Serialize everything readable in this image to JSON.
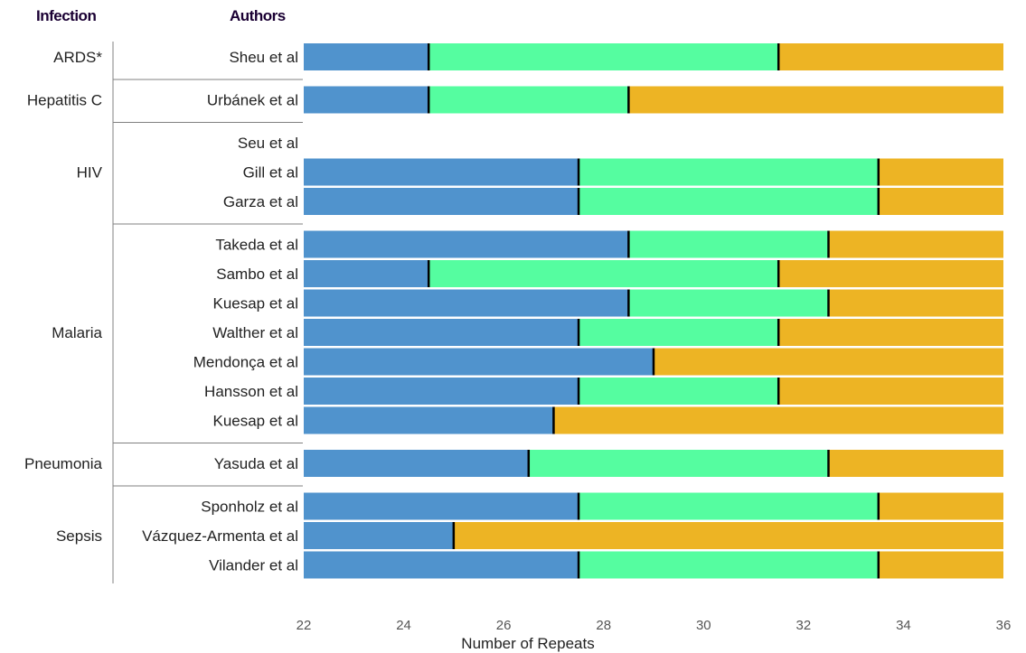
{
  "chart_data": {
    "type": "bar",
    "orientation": "horizontal-stacked-ranges",
    "headers": {
      "group": "Infection",
      "study": "Authors"
    },
    "xlabel": "Number of Repeats",
    "xlim": [
      22,
      36
    ],
    "xticks": [
      "22",
      "24",
      "26",
      "28",
      "30",
      "32",
      "34",
      "36"
    ],
    "colors": {
      "low": "#5093cd",
      "mid": "#55fda0",
      "high": "#edb424",
      "marker": "#000000"
    },
    "groups": [
      {
        "name": "ARDS*",
        "rows": [
          {
            "author": "Sheu et al",
            "cut1": 24.5,
            "cut2": 31.5
          }
        ]
      },
      {
        "name": "Hepatitis C",
        "rows": [
          {
            "author": "Urbánek et al",
            "cut1": 24.5,
            "cut2": 28.5
          }
        ]
      },
      {
        "name": "HIV",
        "rows": [
          {
            "author": "Seu et al",
            "cut1": null,
            "cut2": null
          },
          {
            "author": "Gill et al",
            "cut1": 27.5,
            "cut2": 33.5
          },
          {
            "author": "Garza et al",
            "cut1": 27.5,
            "cut2": 33.5
          }
        ]
      },
      {
        "name": "Malaria",
        "rows": [
          {
            "author": "Takeda et al",
            "cut1": 28.5,
            "cut2": 32.5
          },
          {
            "author": "Sambo et al",
            "cut1": 24.5,
            "cut2": 31.5
          },
          {
            "author": "Kuesap et al",
            "cut1": 28.5,
            "cut2": 32.5
          },
          {
            "author": "Walther et al",
            "cut1": 27.5,
            "cut2": 31.5
          },
          {
            "author": "Mendonça et al",
            "cut1": 29,
            "cut2": null
          },
          {
            "author": "Hansson et al",
            "cut1": 27.5,
            "cut2": 31.5
          },
          {
            "author": "Kuesap et al",
            "cut1": 27,
            "cut2": null
          }
        ]
      },
      {
        "name": "Pneumonia",
        "rows": [
          {
            "author": "Yasuda et al",
            "cut1": 26.5,
            "cut2": 32.5
          }
        ]
      },
      {
        "name": "Sepsis",
        "rows": [
          {
            "author": "Sponholz et al",
            "cut1": 27.5,
            "cut2": 33.5
          },
          {
            "author": "Vázquez-Armenta et al",
            "cut1": 25,
            "cut2": null
          },
          {
            "author": "Vilander et al",
            "cut1": 27.5,
            "cut2": 33.5
          }
        ]
      }
    ]
  }
}
